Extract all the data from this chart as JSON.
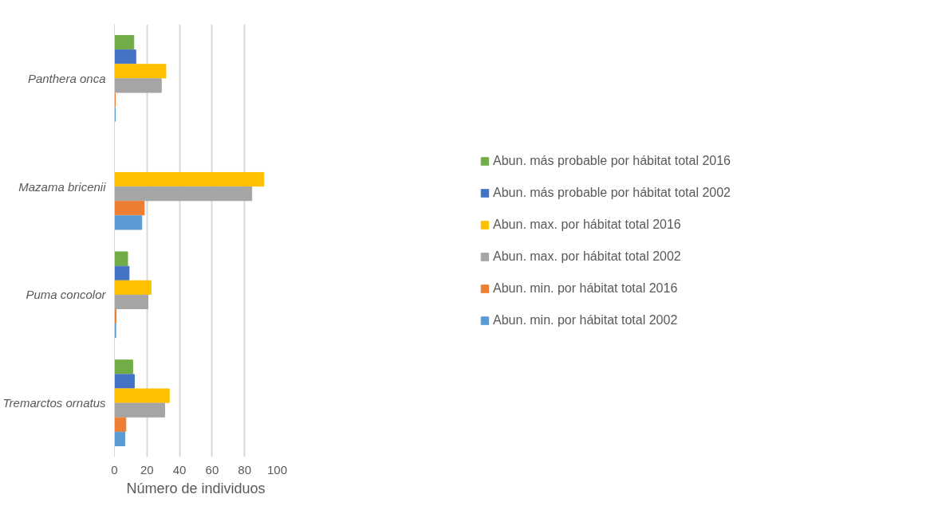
{
  "chart_data": {
    "type": "bar",
    "orientation": "horizontal",
    "xlabel": "Número de individuos",
    "categories": [
      "Panthera onca",
      "Mazama bricenii",
      "Puma concolor",
      "Tremarctos ornatus"
    ],
    "series": [
      {
        "name": "Abun. más probable por hábitat total 2016",
        "color": "#70ad47",
        "values": [
          11.9,
          null,
          8.1,
          11.2
        ]
      },
      {
        "name": "Abun. más probable por hábitat total 2002",
        "color": "#4472c4",
        "values": [
          13.1,
          null,
          9.0,
          12.2
        ]
      },
      {
        "name": "Abun. max. por hábitat total 2016",
        "color": "#ffc000",
        "values": [
          31.6,
          91.8,
          22.5,
          33.7
        ]
      },
      {
        "name": "Abun. max. por hábitat total 2002",
        "color": "#a5a5a5",
        "values": [
          28.8,
          84.4,
          20.6,
          30.9
        ]
      },
      {
        "name": "Abun. min. por hábitat total 2016",
        "color": "#ed7d31",
        "values": [
          0.5,
          18.3,
          1.0,
          7.0
        ]
      },
      {
        "name": "Abun. min. por hábitat total 2002",
        "color": "#5b9bd5",
        "values": [
          0.5,
          16.8,
          0.8,
          6.4
        ]
      }
    ],
    "xlim": [
      0,
      100
    ],
    "xticks": [
      0,
      20,
      40,
      60,
      80,
      100
    ],
    "grid": "x",
    "legend": "right"
  }
}
